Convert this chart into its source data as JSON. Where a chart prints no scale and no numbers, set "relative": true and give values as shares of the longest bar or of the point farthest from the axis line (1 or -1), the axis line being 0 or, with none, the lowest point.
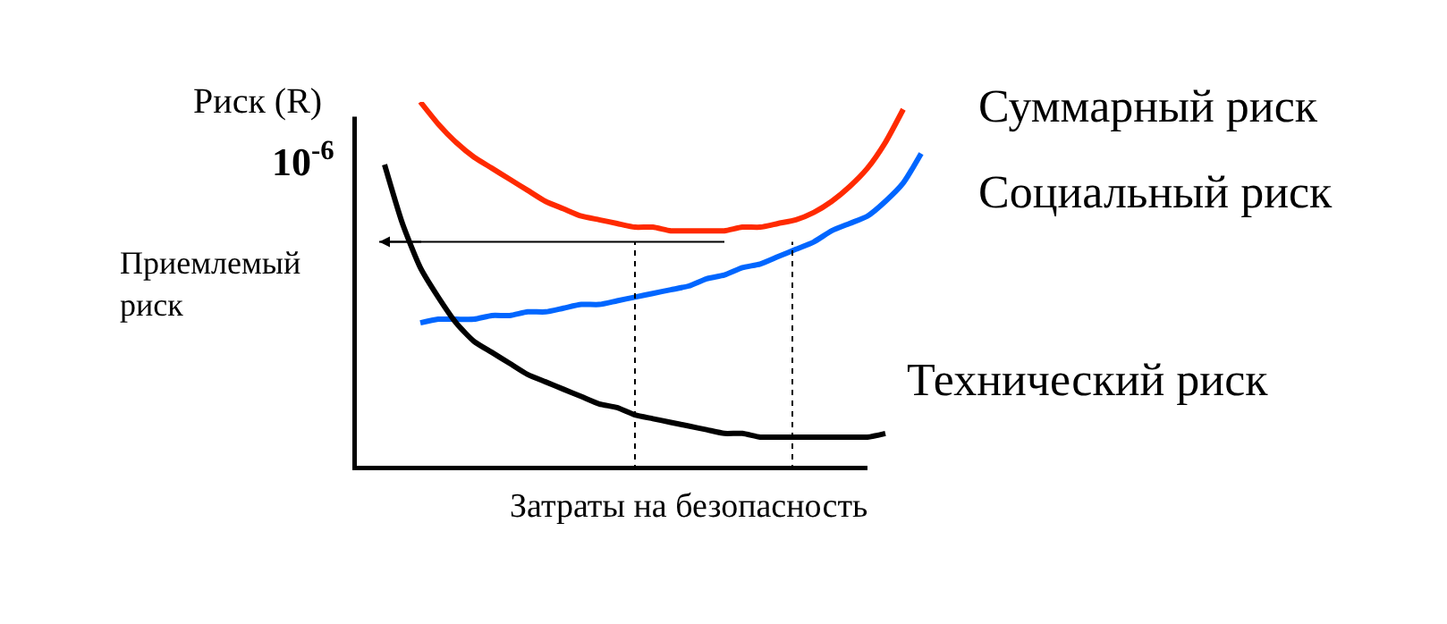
{
  "chart_data": {
    "type": "line",
    "relative": true,
    "xlabel": "Затраты на безопасность",
    "ylabel": "Риск (R)",
    "annotations": [
      "10$^{-6}$"
    ],
    "categories": [
      null,
      null,
      null,
      null,
      null,
      null,
      null,
      null,
      null,
      null,
      null,
      null,
      null,
      null,
      null,
      null,
      null,
      null,
      null,
      null,
      null,
      null,
      null,
      null,
      null,
      null,
      null,
      null,
      null,
      null,
      null
    ],
    "series": [
      {
        "name": "Суммарный риск",
        "color": "#ff2a00",
        "values": [
          null,
          null,
          1.0,
          0.94,
          0.89,
          0.85,
          0.82,
          0.79,
          0.76,
          0.73,
          0.71,
          0.69,
          0.68,
          0.67,
          0.66,
          0.66,
          0.65,
          0.65,
          0.65,
          0.65,
          0.66,
          0.66,
          0.67,
          0.68,
          0.7,
          0.73,
          0.77,
          0.82,
          0.89,
          0.98,
          null
        ]
      },
      {
        "name": "Социальный риск",
        "color": "#0066ff",
        "values": [
          null,
          null,
          0.4,
          0.41,
          0.41,
          0.41,
          0.42,
          0.42,
          0.43,
          0.43,
          0.44,
          0.45,
          0.45,
          0.46,
          0.47,
          0.48,
          0.49,
          0.5,
          0.52,
          0.53,
          0.55,
          0.56,
          0.58,
          0.6,
          0.62,
          0.65,
          0.67,
          0.69,
          0.73,
          0.78,
          0.86
        ]
      },
      {
        "name": "Технический риск",
        "color": "#000000",
        "values": [
          0.83,
          0.67,
          0.55,
          0.47,
          0.4,
          0.35,
          0.32,
          0.29,
          0.26,
          0.24,
          0.22,
          0.2,
          0.18,
          0.17,
          0.15,
          0.14,
          0.13,
          0.12,
          0.11,
          0.1,
          0.1,
          0.09,
          0.09,
          0.09,
          0.09,
          0.09,
          0.09,
          0.09,
          0.1,
          null,
          null
        ]
      }
    ],
    "ref_lines": [
      {
        "axis": "y",
        "value": 0.62,
        "label": "Приемлемый риск",
        "color": "#000000",
        "line_style": "solid"
      }
    ],
    "marker": "none",
    "line_style": "solid",
    "legend": false
  }
}
